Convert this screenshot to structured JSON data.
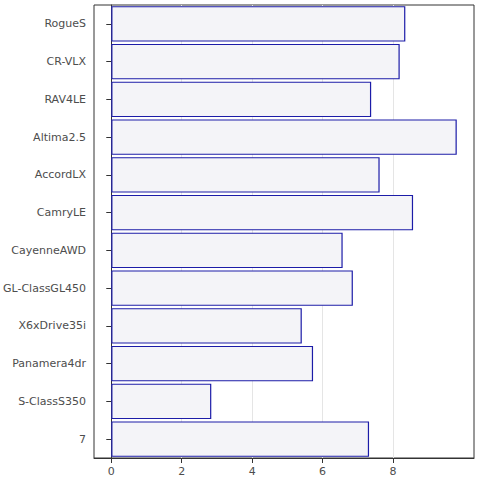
{
  "chart_data": {
    "type": "bar",
    "orientation": "horizontal",
    "categories": [
      "RogueS",
      "CR-VLX",
      "RAV4LE",
      "Altima2.5",
      "AccordLX",
      "CamryLE",
      "CayenneAWD",
      "GL-ClassGL450",
      "X6xDrive35i",
      "Panamera4dr",
      "S-ClassS350",
      "7"
    ],
    "values": [
      8.35,
      8.19,
      7.38,
      9.81,
      7.62,
      8.57,
      6.57,
      6.86,
      5.41,
      5.73,
      2.84,
      7.32
    ],
    "color": "#1c1ca8",
    "xlim": [
      -0.49,
      10.3
    ],
    "xticks": [
      0,
      2,
      4,
      6,
      8
    ],
    "grid": true
  }
}
